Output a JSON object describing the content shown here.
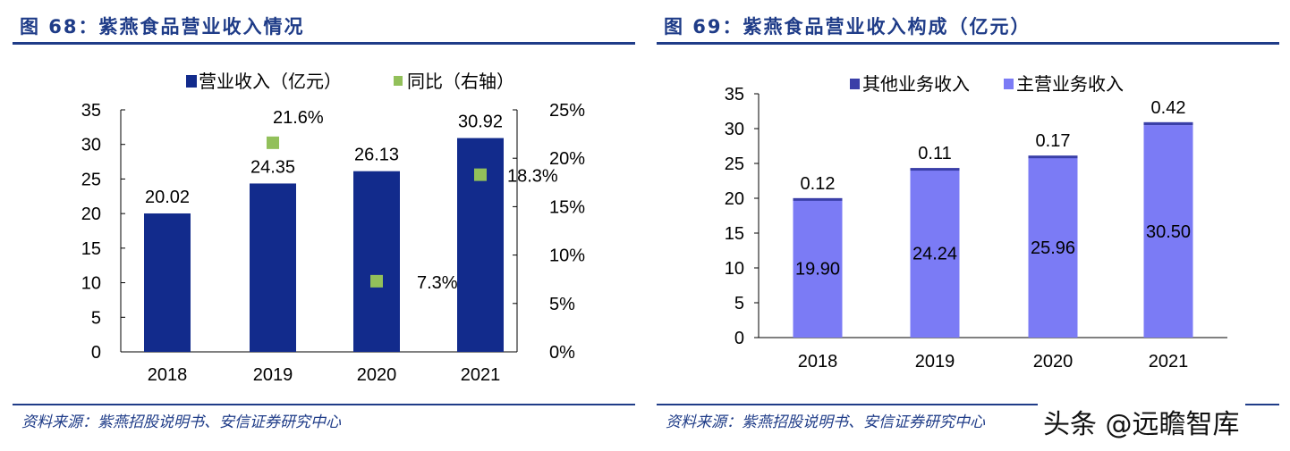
{
  "left": {
    "figure_title": "图 68：紫燕食品营业收入情况",
    "source": "资料来源：紫燕招股说明书、安信证券研究中心"
  },
  "right": {
    "figure_title": "图 69：紫燕食品营业收入构成（亿元）",
    "source": "资料来源：紫燕招股说明书、安信证券研究中心"
  },
  "watermark": "头条 @远瞻智库",
  "chart_data": [
    {
      "type": "bar+scatter",
      "categories": [
        "2018",
        "2019",
        "2020",
        "2021"
      ],
      "series": [
        {
          "name": "营业收入（亿元）",
          "type": "bar",
          "axis": "left",
          "values": [
            20.02,
            24.35,
            26.13,
            30.92
          ],
          "labels": [
            "20.02",
            "24.35",
            "26.13",
            "30.92"
          ],
          "color": "#122b8c"
        },
        {
          "name": "同比（右轴）",
          "type": "scatter",
          "axis": "right",
          "values": [
            null,
            21.6,
            7.3,
            18.3
          ],
          "labels": [
            "",
            "21.6%",
            "7.3%",
            "18.3%"
          ],
          "color": "#92c05a"
        }
      ],
      "ylim": [
        0,
        35
      ],
      "yticks": [
        "0",
        "5",
        "10",
        "15",
        "20",
        "25",
        "30",
        "35"
      ],
      "y2lim": [
        0,
        25
      ],
      "y2ticks": [
        "0%",
        "5%",
        "10%",
        "15%",
        "20%",
        "25%"
      ],
      "legend": "top",
      "grid": false
    },
    {
      "type": "stacked-bar",
      "categories": [
        "2018",
        "2019",
        "2020",
        "2021"
      ],
      "series": [
        {
          "name": "其他业务收入",
          "values": [
            0.12,
            0.11,
            0.17,
            0.42
          ],
          "labels": [
            "0.12",
            "0.11",
            "0.17",
            "0.42"
          ],
          "color": "#3a3fa8"
        },
        {
          "name": "主营业务收入",
          "values": [
            19.9,
            24.24,
            25.96,
            30.5
          ],
          "labels": [
            "19.90",
            "24.24",
            "25.96",
            "30.50"
          ],
          "color": "#7b7bf5"
        }
      ],
      "ylim": [
        0,
        35
      ],
      "yticks": [
        "0",
        "5",
        "10",
        "15",
        "20",
        "25",
        "30",
        "35"
      ],
      "legend": "top",
      "grid": false
    }
  ]
}
